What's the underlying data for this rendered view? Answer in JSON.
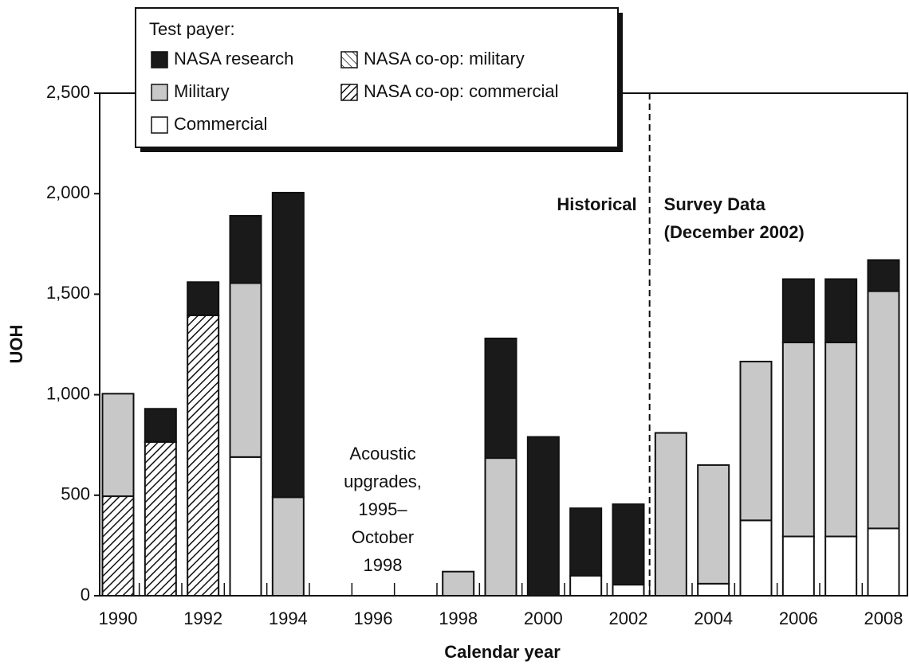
{
  "chart_data": {
    "type": "stacked_bar",
    "categories": [
      "1990",
      null,
      "1992",
      null,
      "1994",
      null,
      "1996",
      null,
      "1998",
      null,
      "2000",
      null,
      "2002",
      null,
      "2004",
      null,
      "2006",
      null,
      "2008"
    ],
    "series": [
      {
        "name": "Commercial",
        "color": "#ffffff",
        "values": [
          null,
          null,
          null,
          690,
          null,
          null,
          null,
          null,
          null,
          null,
          null,
          100,
          55,
          null,
          60,
          375,
          295,
          295,
          335
        ]
      },
      {
        "name": "NASA co-op: commercial",
        "color": "#ffffff",
        "hatch": "forward",
        "values": [
          495,
          765,
          1395,
          null,
          null,
          null,
          null,
          null,
          null,
          null,
          null,
          null,
          null,
          null,
          null,
          null,
          null,
          null,
          null
        ]
      },
      {
        "name": "NASA co-op: military",
        "color": "#ffffff",
        "hatch": "backward",
        "values": [
          null,
          null,
          null,
          null,
          null,
          null,
          null,
          null,
          null,
          null,
          null,
          null,
          null,
          null,
          null,
          null,
          null,
          null,
          null
        ]
      },
      {
        "name": "Military",
        "color": "#c8c8c8",
        "values": [
          510,
          null,
          null,
          865,
          490,
          null,
          null,
          null,
          120,
          685,
          null,
          null,
          null,
          810,
          590,
          790,
          965,
          965,
          1180
        ]
      },
      {
        "name": "NASA research",
        "color": "#1a1a1a",
        "values": [
          null,
          165,
          165,
          335,
          1515,
          null,
          null,
          null,
          null,
          595,
          790,
          335,
          400,
          null,
          null,
          null,
          315,
          315,
          155
        ]
      }
    ],
    "legend_title": "Test payer:",
    "ylabel": "UOH",
    "xlabel": "Calendar year",
    "ylim": [
      0,
      2500
    ],
    "yticks": [
      0,
      500,
      {
        "value": 1000,
        "label": "1,000"
      },
      {
        "value": 1500,
        "label": "1,500"
      },
      {
        "value": 2000,
        "label": "2,000"
      },
      {
        "value": 2500,
        "label": "2,500"
      }
    ],
    "annotations": [
      {
        "lines": [
          "Acoustic",
          "upgrades,",
          "1995–",
          "October",
          "1998"
        ]
      },
      {
        "lines": [
          "Historical"
        ]
      },
      {
        "lines": [
          "Survey Data",
          "(December 2002)"
        ]
      }
    ]
  }
}
